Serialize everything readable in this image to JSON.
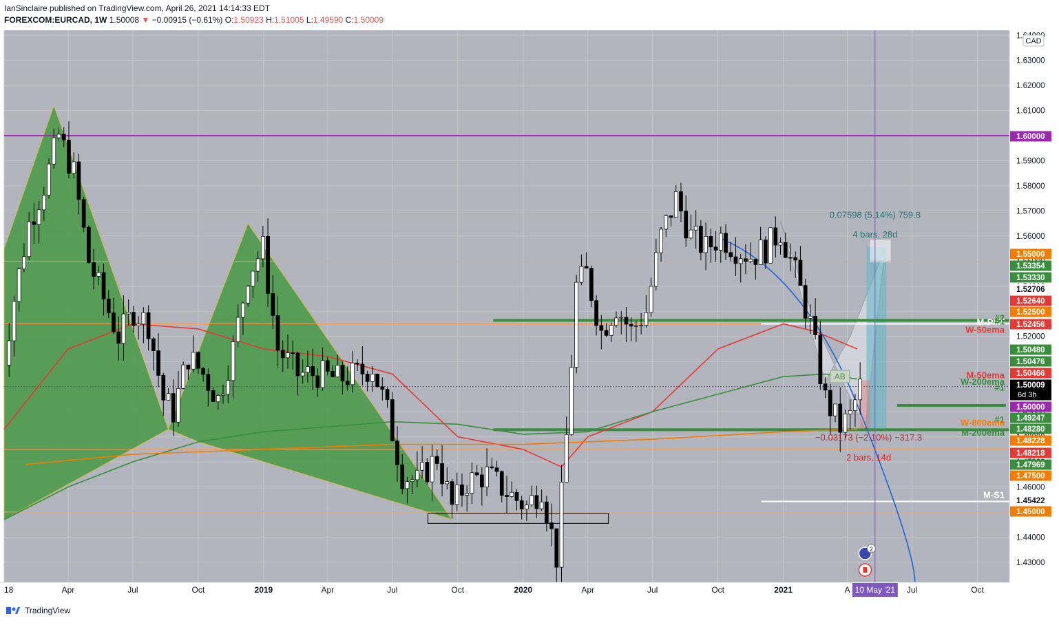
{
  "header": {
    "line1": "IanSinclaire published on TradingView.com, April 26, 2021 14:14:33 EDT",
    "symbol": "FOREXCOM:EURCAD, 1W",
    "last": "1.50008",
    "change_arrow": "▼",
    "change": "−0.00915 (−0.61%)",
    "o_label": "O:",
    "o": "1.50923",
    "h_label": "H:",
    "h": "1.51005",
    "l_label": "L:",
    "l": "1.49590",
    "c_label": "C:",
    "c": "1.50009"
  },
  "footer": {
    "brand": "TradingView",
    "logo_icon": "tradingview-logo-icon"
  },
  "colors": {
    "background": "#b2b5be",
    "up": "#ffffff",
    "down": "#000000",
    "ema_red": "#e53935",
    "ema_green": "#388e3c",
    "ema_orange": "#f57c00",
    "level_green": "#388e3c",
    "magenta": "#9c27b0",
    "harmonic_fill": "#4c9a4c",
    "projection": "#1e63d6"
  },
  "chart_data": {
    "type": "candlestick",
    "title": "",
    "xlabel": "",
    "ylabel": "",
    "currency_label": "CAD",
    "y_range": [
      1.422,
      1.642
    ],
    "x_range": [
      "2018-01-01",
      "2021-11-15"
    ],
    "grid": true,
    "y_ticks": [
      1.43,
      1.44,
      1.45,
      1.46,
      1.47,
      1.48,
      1.49,
      1.5,
      1.51,
      1.52,
      1.53,
      1.54,
      1.55,
      1.56,
      1.57,
      1.58,
      1.59,
      1.6,
      1.61,
      1.62,
      1.63,
      1.64
    ],
    "y_tick_labels": [
      "1.43000",
      "1.44000",
      "1.45000",
      "1.46000",
      "1.47000",
      "1.48000",
      "1.49000",
      "1.50000",
      "1.51000",
      "1.52000",
      "1.53000",
      "1.54000",
      "1.55000",
      "1.56000",
      "1.57000",
      "1.58000",
      "1.59000",
      "1.60000",
      "1.61000",
      "1.62000",
      "1.63000",
      "1.64000"
    ],
    "x_ticks": [
      {
        "date": "2018-01-01",
        "label": "18"
      },
      {
        "date": "2018-04-01",
        "label": "Apr"
      },
      {
        "date": "2018-07-01",
        "label": "Jul"
      },
      {
        "date": "2018-10-01",
        "label": "Oct"
      },
      {
        "date": "2019-01-01",
        "label": "2019"
      },
      {
        "date": "2019-04-01",
        "label": "Apr"
      },
      {
        "date": "2019-07-01",
        "label": "Jul"
      },
      {
        "date": "2019-10-01",
        "label": "Oct"
      },
      {
        "date": "2020-01-01",
        "label": "2020"
      },
      {
        "date": "2020-04-01",
        "label": "Apr"
      },
      {
        "date": "2020-07-01",
        "label": "Jul"
      },
      {
        "date": "2020-10-01",
        "label": "Oct"
      },
      {
        "date": "2021-01-01",
        "label": "2021"
      },
      {
        "date": "2021-04-01",
        "label": "A"
      },
      {
        "date": "2021-07-01",
        "label": "Jul"
      },
      {
        "date": "2021-10-01",
        "label": "Oct"
      }
    ],
    "cursor": {
      "date": "2021-05-10",
      "label": "10 May '21"
    },
    "candles_anchor_close": [
      [
        "2017-12-25",
        1.5
      ],
      [
        "2018-01-15",
        1.535
      ],
      [
        "2018-02-05",
        1.565
      ],
      [
        "2018-02-26",
        1.58
      ],
      [
        "2018-03-19",
        1.6
      ],
      [
        "2018-04-09",
        1.585
      ],
      [
        "2018-04-30",
        1.55
      ],
      [
        "2018-05-21",
        1.535
      ],
      [
        "2018-06-11",
        1.52
      ],
      [
        "2018-07-02",
        1.53
      ],
      [
        "2018-07-23",
        1.525
      ],
      [
        "2018-08-13",
        1.495
      ],
      [
        "2018-08-27",
        1.49
      ],
      [
        "2018-09-17",
        1.512
      ],
      [
        "2018-10-08",
        1.505
      ],
      [
        "2018-10-29",
        1.495
      ],
      [
        "2018-11-19",
        1.515
      ],
      [
        "2018-12-10",
        1.545
      ],
      [
        "2018-12-31",
        1.555
      ],
      [
        "2019-01-21",
        1.515
      ],
      [
        "2019-02-18",
        1.505
      ],
      [
        "2019-03-18",
        1.505
      ],
      [
        "2019-04-15",
        1.503
      ],
      [
        "2019-05-13",
        1.505
      ],
      [
        "2019-06-03",
        1.508
      ],
      [
        "2019-06-24",
        1.49
      ],
      [
        "2019-07-15",
        1.465
      ],
      [
        "2019-08-05",
        1.462
      ],
      [
        "2019-09-02",
        1.472
      ],
      [
        "2019-09-23",
        1.452
      ],
      [
        "2019-10-14",
        1.462
      ],
      [
        "2019-11-11",
        1.465
      ],
      [
        "2019-12-09",
        1.458
      ],
      [
        "2020-01-06",
        1.452
      ],
      [
        "2020-01-27",
        1.46
      ],
      [
        "2020-02-17",
        1.432
      ],
      [
        "2020-03-02",
        1.48
      ],
      [
        "2020-03-16",
        1.54
      ],
      [
        "2020-03-30",
        1.545
      ],
      [
        "2020-04-20",
        1.522
      ],
      [
        "2020-05-11",
        1.532
      ],
      [
        "2020-06-01",
        1.522
      ],
      [
        "2020-06-22",
        1.53
      ],
      [
        "2020-07-13",
        1.56
      ],
      [
        "2020-08-03",
        1.575
      ],
      [
        "2020-08-24",
        1.56
      ],
      [
        "2020-09-14",
        1.555
      ],
      [
        "2020-10-05",
        1.56
      ],
      [
        "2020-10-26",
        1.555
      ],
      [
        "2020-11-16",
        1.552
      ],
      [
        "2020-12-07",
        1.555
      ],
      [
        "2020-12-28",
        1.562
      ],
      [
        "2021-01-18",
        1.545
      ],
      [
        "2021-02-08",
        1.525
      ],
      [
        "2021-03-01",
        1.495
      ],
      [
        "2021-03-22",
        1.484
      ],
      [
        "2021-04-05",
        1.488
      ],
      [
        "2021-04-19",
        1.5
      ]
    ],
    "ema_series": [
      {
        "name": "W-50ema",
        "points": [
          [
            "2018-01-01",
            1.483
          ],
          [
            "2018-04-01",
            1.515
          ],
          [
            "2018-07-01",
            1.525
          ],
          [
            "2018-10-01",
            1.523
          ],
          [
            "2019-01-01",
            1.515
          ],
          [
            "2019-04-01",
            1.512
          ],
          [
            "2019-07-01",
            1.505
          ],
          [
            "2019-10-01",
            1.48
          ],
          [
            "2020-01-01",
            1.475
          ],
          [
            "2020-02-24",
            1.468
          ],
          [
            "2020-04-01",
            1.48
          ],
          [
            "2020-07-01",
            1.49
          ],
          [
            "2020-10-01",
            1.515
          ],
          [
            "2021-01-01",
            1.525
          ],
          [
            "2021-02-15",
            1.522
          ],
          [
            "2021-04-15",
            1.515
          ]
        ]
      },
      {
        "name": "W-200ema",
        "points": [
          [
            "2018-01-01",
            1.447
          ],
          [
            "2018-04-01",
            1.46
          ],
          [
            "2018-07-01",
            1.47
          ],
          [
            "2018-10-01",
            1.478
          ],
          [
            "2019-01-01",
            1.482
          ],
          [
            "2019-04-01",
            1.484
          ],
          [
            "2019-07-01",
            1.486
          ],
          [
            "2019-10-01",
            1.485
          ],
          [
            "2020-01-01",
            1.481
          ],
          [
            "2020-04-01",
            1.482
          ],
          [
            "2020-07-01",
            1.49
          ],
          [
            "2020-10-01",
            1.497
          ],
          [
            "2021-01-01",
            1.504
          ],
          [
            "2021-03-01",
            1.505
          ],
          [
            "2021-04-15",
            1.503
          ]
        ]
      },
      {
        "name": "W-800ema",
        "points": [
          [
            "2018-02-01",
            1.469
          ],
          [
            "2018-07-01",
            1.473
          ],
          [
            "2019-01-01",
            1.475
          ],
          [
            "2019-07-01",
            1.477
          ],
          [
            "2020-01-01",
            1.477
          ],
          [
            "2020-07-01",
            1.479
          ],
          [
            "2021-01-01",
            1.482
          ],
          [
            "2021-04-15",
            1.483
          ]
        ]
      }
    ],
    "horizontal_levels": [
      {
        "value": 1.6,
        "color": "magenta",
        "label": "1.60000"
      },
      {
        "value": 1.55,
        "color": "orange-thin",
        "label": "1.55000"
      },
      {
        "value": 1.525,
        "color": "orange-thin",
        "label": "1.52500"
      },
      {
        "value": 1.5,
        "color": "magenta-dotted",
        "label": "1.50000"
      },
      {
        "value": 1.475,
        "color": "orange-thin",
        "label": "1.47500"
      },
      {
        "value": 1.45,
        "color": "orange-thin",
        "label": "1.45000"
      },
      {
        "value": 1.5264,
        "color": "green",
        "label": "#2"
      },
      {
        "value": 1.4828,
        "color": "green",
        "label": "#1"
      },
      {
        "value": 1.4925,
        "color": "green",
        "label": "#1"
      },
      {
        "value": 1.525,
        "color": "white",
        "label": "M-PVT"
      },
      {
        "value": 1.45422,
        "color": "white",
        "label": "M-S1"
      }
    ],
    "price_labels": [
      {
        "value": 1.6,
        "text": "1.60000",
        "bg": "#9c27b0",
        "fg": "#ffffff"
      },
      {
        "value": 1.55,
        "text": "1.55000",
        "bg": "#f57c00",
        "fg": "#ffffff"
      },
      {
        "value": 1.53354,
        "text": "1.53354",
        "bg": "#388e3c",
        "fg": "#ffffff"
      },
      {
        "value": 1.5333,
        "text": "1.53330",
        "bg": "#388e3c",
        "fg": "#ffffff"
      },
      {
        "value": 1.52706,
        "text": "1.52706",
        "bg": "#ffffff",
        "fg": "#131722"
      },
      {
        "value": 1.5264,
        "text": "1.52640",
        "bg": "#e53935",
        "fg": "#ffffff"
      },
      {
        "value": 1.525,
        "text": "1.52500",
        "bg": "#f57c00",
        "fg": "#ffffff"
      },
      {
        "value": 1.52456,
        "text": "1.52456",
        "bg": "#e53935",
        "fg": "#ffffff"
      },
      {
        "value": 1.5048,
        "text": "1.50480",
        "bg": "#388e3c",
        "fg": "#ffffff"
      },
      {
        "value": 1.50476,
        "text": "1.50476",
        "bg": "#388e3c",
        "fg": "#ffffff"
      },
      {
        "value": 1.50466,
        "text": "1.50466",
        "bg": "#e53935",
        "fg": "#ffffff"
      },
      {
        "value": 1.50009,
        "text": "1.50009",
        "bg": "#000000",
        "fg": "#ffffff",
        "sub": "6d 3h"
      },
      {
        "value": 1.5,
        "text": "1.50000",
        "bg": "#9c27b0",
        "fg": "#ffffff"
      },
      {
        "value": 1.49247,
        "text": "1.49247",
        "bg": "#388e3c",
        "fg": "#ffffff"
      },
      {
        "value": 1.4828,
        "text": "1.48280",
        "bg": "#388e3c",
        "fg": "#ffffff"
      },
      {
        "value": 1.48228,
        "text": "1.48228",
        "bg": "#f57c00",
        "fg": "#ffffff"
      },
      {
        "value": 1.48218,
        "text": "1.48218",
        "bg": "#e53935",
        "fg": "#ffffff"
      },
      {
        "value": 1.47969,
        "text": "1.47969",
        "bg": "#388e3c",
        "fg": "#ffffff"
      },
      {
        "value": 1.475,
        "text": "1.47500",
        "bg": "#f57c00",
        "fg": "#ffffff"
      },
      {
        "value": 1.45422,
        "text": "1.45422",
        "bg": "#ffffff",
        "fg": "#131722"
      },
      {
        "value": 1.45,
        "text": "1.45000",
        "bg": "#f57c00",
        "fg": "#ffffff"
      }
    ],
    "line_labels": [
      {
        "text": "#2",
        "color": "#388e3c"
      },
      {
        "text": "M-PVT",
        "color": "#ffffff"
      },
      {
        "text": "#1",
        "color": "#388e3c"
      },
      {
        "text": "W-50ema",
        "color": "#e53935"
      },
      {
        "text": "M-50ema",
        "color": "#e53935"
      },
      {
        "text": "W-200ema",
        "color": "#388e3c"
      },
      {
        "text": "#1",
        "color": "#388e3c"
      },
      {
        "text": "#1",
        "color": "#388e3c"
      },
      {
        "text": "W-800ema",
        "color": "#f57c00"
      },
      {
        "text": "M-200ema",
        "color": "#388e3c"
      },
      {
        "text": "M-S1",
        "color": "#ffffff"
      }
    ],
    "annotations": [
      {
        "text": "0.07598 (5.14%) 759.8",
        "color": "#26706e"
      },
      {
        "text": "4 bars, 28d",
        "color": "#26706e"
      },
      {
        "text": "−0.03173 (−2.10%) −317.3",
        "color": "#c62828"
      },
      {
        "text": "2 bars, 14d",
        "color": "#c62828"
      },
      {
        "text": "AB",
        "color": "#5a8a5a"
      }
    ],
    "event_badges": [
      {
        "text": "2"
      }
    ]
  }
}
